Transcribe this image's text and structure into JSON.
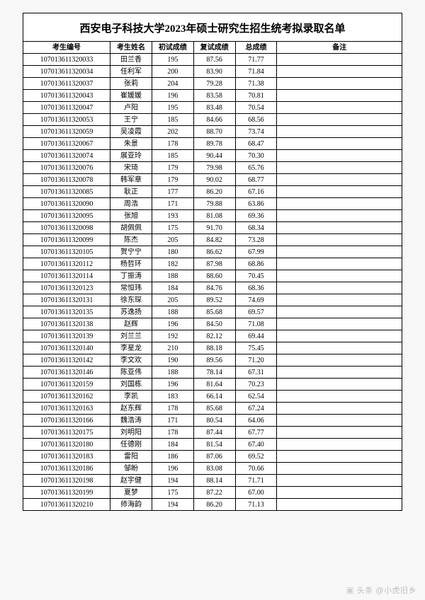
{
  "title": "西安电子科技大学2023年硕士研究生招生统考拟录取名单",
  "columns": [
    "考生编号",
    "考生姓名",
    "初试成绩",
    "复试成绩",
    "总成绩",
    "备注"
  ],
  "rows": [
    [
      "107013611320033",
      "田兰香",
      "195",
      "87.56",
      "71.77",
      ""
    ],
    [
      "107013611320034",
      "任利军",
      "200",
      "83.90",
      "71.84",
      ""
    ],
    [
      "107013611320037",
      "张莉",
      "204",
      "79.28",
      "71.38",
      ""
    ],
    [
      "107013611320043",
      "崔媛媛",
      "196",
      "83.58",
      "70.81",
      ""
    ],
    [
      "107013611320047",
      "卢阳",
      "195",
      "83.48",
      "70.54",
      ""
    ],
    [
      "107013611320053",
      "王宁",
      "185",
      "84.66",
      "68.56",
      ""
    ],
    [
      "107013611320059",
      "吴凌霞",
      "202",
      "88.70",
      "73.74",
      ""
    ],
    [
      "107013611320067",
      "朱景",
      "178",
      "89.78",
      "68.47",
      ""
    ],
    [
      "107013611320074",
      "展亚玲",
      "185",
      "90.44",
      "70.30",
      ""
    ],
    [
      "107013611320076",
      "宋琦",
      "179",
      "79.98",
      "65.76",
      ""
    ],
    [
      "107013611320078",
      "韩军章",
      "179",
      "90.02",
      "68.77",
      ""
    ],
    [
      "107013611320085",
      "耿正",
      "177",
      "86.20",
      "67.16",
      ""
    ],
    [
      "107013611320090",
      "周浩",
      "171",
      "79.88",
      "63.86",
      ""
    ],
    [
      "107013611320095",
      "张旭",
      "193",
      "81.08",
      "69.36",
      ""
    ],
    [
      "107013611320098",
      "胡佩佩",
      "175",
      "91.70",
      "68.34",
      ""
    ],
    [
      "107013611320099",
      "陈杰",
      "205",
      "84.82",
      "73.28",
      ""
    ],
    [
      "107013611320105",
      "贺宁宁",
      "180",
      "86.62",
      "67.99",
      ""
    ],
    [
      "107013611320112",
      "杨哲环",
      "182",
      "87.98",
      "68.86",
      ""
    ],
    [
      "107013611320114",
      "丁振涛",
      "188",
      "88.60",
      "70.45",
      ""
    ],
    [
      "107013611320123",
      "常恒玮",
      "184",
      "84.76",
      "68.36",
      ""
    ],
    [
      "107013611320131",
      "徐东琛",
      "205",
      "89.52",
      "74.69",
      ""
    ],
    [
      "107013611320135",
      "苏逸扬",
      "188",
      "85.68",
      "69.57",
      ""
    ],
    [
      "107013611320138",
      "赵辉",
      "196",
      "84.50",
      "71.08",
      ""
    ],
    [
      "107013611320139",
      "刘兰兰",
      "192",
      "82.12",
      "69.44",
      ""
    ],
    [
      "107013611320140",
      "李星龙",
      "210",
      "88.18",
      "75.45",
      ""
    ],
    [
      "107013611320142",
      "李文欢",
      "190",
      "89.56",
      "71.20",
      ""
    ],
    [
      "107013611320146",
      "陈亚伟",
      "188",
      "78.14",
      "67.31",
      ""
    ],
    [
      "107013611320159",
      "刘国栋",
      "196",
      "81.64",
      "70.23",
      ""
    ],
    [
      "107013611320162",
      "李凯",
      "183",
      "66.14",
      "62.54",
      ""
    ],
    [
      "107013611320163",
      "赵东辉",
      "178",
      "85.68",
      "67.24",
      ""
    ],
    [
      "107013611320166",
      "魏浩涛",
      "171",
      "80.54",
      "64.06",
      ""
    ],
    [
      "107013611320175",
      "刘明阳",
      "178",
      "87.44",
      "67.77",
      ""
    ],
    [
      "107013611320180",
      "任德刚",
      "184",
      "81.54",
      "67.40",
      ""
    ],
    [
      "107013611320183",
      "雷阳",
      "186",
      "87.06",
      "69.52",
      ""
    ],
    [
      "107013611320186",
      "邹盼",
      "196",
      "83.08",
      "70.66",
      ""
    ],
    [
      "107013611320198",
      "赵宇健",
      "194",
      "88.14",
      "71.71",
      ""
    ],
    [
      "107013611320199",
      "夏梦",
      "175",
      "87.22",
      "67.00",
      ""
    ],
    [
      "107013611320210",
      "师海韵",
      "194",
      "86.20",
      "71.13",
      ""
    ]
  ],
  "watermark": "头条 @小虎旧乡",
  "colors": {
    "border": "#000000",
    "bg": "#f8f8f8",
    "sheet": "#ffffff",
    "watermark": "#bfbfbf"
  },
  "fontsizes": {
    "title": 15,
    "cell": 10
  }
}
